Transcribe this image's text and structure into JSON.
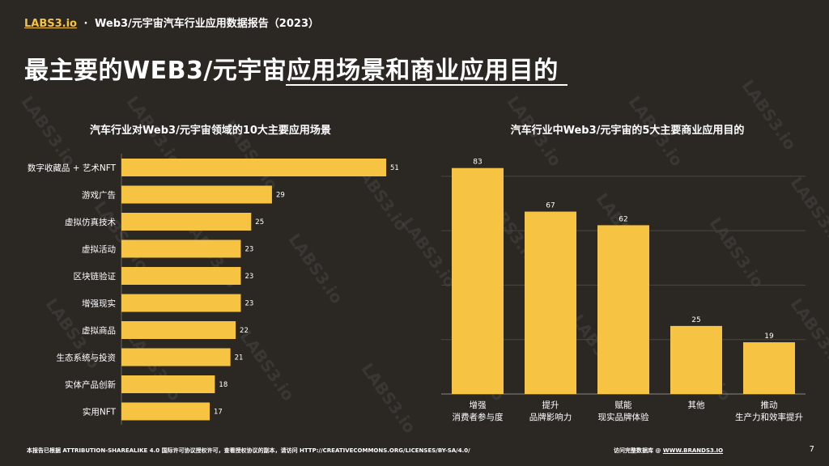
{
  "header": {
    "logo": "LABS3.io",
    "separator": "·",
    "report_title": "Web3/元宇宙汽车行业应用数据报告（2023）"
  },
  "main_title": "最主要的WEB3/元宇宙应用场景和商业应用目的",
  "watermark_text": "LABS3.io",
  "colors": {
    "bar": "#f6c343",
    "background": "#2b2824",
    "accent": "#f6c343"
  },
  "chart_data": [
    {
      "type": "bar",
      "orientation": "horizontal",
      "title": "汽车行业对Web3/元宇宙领域的10大主要应用场景",
      "categories": [
        "数字收藏品 + 艺术NFT",
        "游戏广告",
        "虚拟仿真技术",
        "虚拟活动",
        "区块链验证",
        "增强现实",
        "虚拟商品",
        "生态系统与投资",
        "实体产品创新",
        "实用NFT"
      ],
      "values": [
        51,
        29,
        25,
        23,
        23,
        23,
        22,
        21,
        18,
        17
      ],
      "xlim": [
        0,
        51
      ],
      "grid": false,
      "data_labels": true
    },
    {
      "type": "bar",
      "orientation": "vertical",
      "title": "汽车行业中Web3/元宇宙的5大主要商业应用目的",
      "categories": [
        [
          "增强",
          "消费者参与度"
        ],
        [
          "提升",
          "品牌影响力"
        ],
        [
          "赋能",
          "现实品牌体验"
        ],
        [
          "其他"
        ],
        [
          "推动",
          "生产力和效率提升"
        ]
      ],
      "values": [
        83,
        67,
        62,
        25,
        19
      ],
      "ylim": [
        0,
        85
      ],
      "grid": true,
      "data_labels": true
    }
  ],
  "footer": {
    "license": "本报告已根据 ATTRIBUTION-SHAREALIKE 4.0 国际许可协议授权许可，查看授权协议的副本，请访问 HTTP://CREATIVECOMMONS.ORG/LICENSES/BY-SA/4.0/",
    "db_prefix": "访问完整数据库 @ ",
    "db_link": "WWW.BRANDS3.IO",
    "page_number": "7"
  }
}
